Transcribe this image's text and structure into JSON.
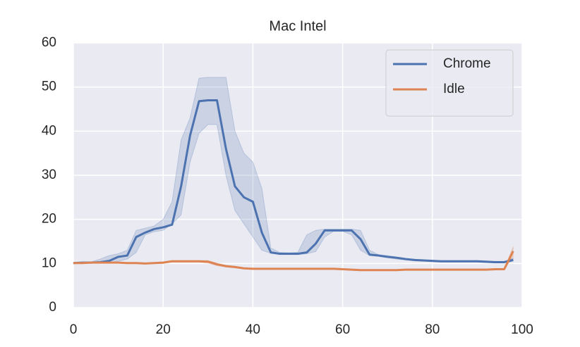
{
  "chart_data": {
    "type": "line",
    "title": "Mac Intel",
    "x": [
      0,
      2,
      4,
      6,
      8,
      10,
      12,
      14,
      16,
      18,
      20,
      22,
      24,
      26,
      28,
      30,
      32,
      34,
      36,
      38,
      40,
      42,
      44,
      46,
      48,
      50,
      52,
      54,
      56,
      58,
      60,
      62,
      64,
      66,
      68,
      70,
      72,
      74,
      76,
      78,
      80,
      82,
      84,
      86,
      88,
      90,
      92,
      94,
      96,
      98
    ],
    "series": [
      {
        "name": "Chrome",
        "color": "#4c72b0",
        "values": [
          10.1,
          10.2,
          10.2,
          10.3,
          10.6,
          11.5,
          11.8,
          16.0,
          17.0,
          17.8,
          18.2,
          18.8,
          27.5,
          39.0,
          46.8,
          47.0,
          47.0,
          36.0,
          27.5,
          25.0,
          24.0,
          17.0,
          12.5,
          12.2,
          12.2,
          12.2,
          12.5,
          14.5,
          17.5,
          17.5,
          17.5,
          17.5,
          15.5,
          12.0,
          11.8,
          11.5,
          11.3,
          11.0,
          10.8,
          10.7,
          10.6,
          10.5,
          10.5,
          10.5,
          10.5,
          10.5,
          10.4,
          10.3,
          10.3,
          10.8
        ],
        "band": {
          "lower": [
            10.0,
            10.0,
            10.1,
            10.1,
            10.2,
            10.5,
            11.0,
            12.5,
            16.5,
            17.2,
            17.5,
            19.0,
            21.0,
            33.0,
            39.5,
            41.5,
            41.5,
            30.0,
            22.0,
            19.0,
            16.0,
            13.0,
            12.3,
            12.0,
            12.0,
            12.0,
            12.2,
            12.7,
            16.0,
            17.3,
            17.3,
            16.5,
            13.0,
            11.8,
            11.6,
            11.3,
            11.0,
            10.8,
            10.6,
            10.5,
            10.4,
            10.3,
            10.3,
            10.3,
            10.3,
            10.3,
            10.2,
            10.1,
            10.1,
            10.5
          ],
          "upper": [
            10.2,
            10.3,
            10.4,
            11.0,
            11.8,
            12.2,
            13.0,
            17.5,
            18.0,
            18.5,
            20.0,
            24.0,
            38.0,
            43.0,
            52.0,
            52.2,
            52.2,
            52.2,
            40.0,
            35.0,
            33.0,
            27.0,
            13.5,
            12.5,
            12.4,
            12.5,
            16.5,
            17.5,
            17.8,
            17.8,
            17.8,
            17.8,
            17.5,
            13.0,
            12.0,
            11.8,
            11.5,
            11.2,
            11.0,
            10.8,
            10.7,
            10.7,
            10.7,
            10.7,
            10.7,
            10.7,
            10.6,
            10.5,
            10.5,
            11.2
          ]
        }
      },
      {
        "name": "Idle",
        "color": "#dd8452",
        "values": [
          10.1,
          10.1,
          10.2,
          10.2,
          10.2,
          10.2,
          10.1,
          10.1,
          10.0,
          10.1,
          10.2,
          10.5,
          10.5,
          10.5,
          10.5,
          10.4,
          9.8,
          9.4,
          9.2,
          8.9,
          8.8,
          8.8,
          8.8,
          8.8,
          8.8,
          8.8,
          8.8,
          8.8,
          8.8,
          8.8,
          8.7,
          8.6,
          8.5,
          8.5,
          8.5,
          8.5,
          8.5,
          8.6,
          8.6,
          8.6,
          8.6,
          8.6,
          8.6,
          8.6,
          8.6,
          8.6,
          8.6,
          8.7,
          8.7,
          12.8
        ],
        "band": {
          "lower": [
            10.0,
            10.0,
            10.1,
            10.1,
            10.1,
            10.1,
            10.0,
            10.0,
            9.9,
            10.0,
            10.0,
            10.3,
            10.3,
            10.3,
            10.3,
            10.1,
            9.5,
            9.2,
            9.0,
            8.8,
            8.7,
            8.7,
            8.7,
            8.7,
            8.7,
            8.7,
            8.7,
            8.7,
            8.7,
            8.7,
            8.6,
            8.5,
            8.4,
            8.4,
            8.4,
            8.4,
            8.4,
            8.5,
            8.5,
            8.5,
            8.5,
            8.5,
            8.5,
            8.5,
            8.5,
            8.5,
            8.5,
            8.6,
            8.6,
            11.5
          ],
          "upper": [
            10.2,
            10.2,
            10.3,
            10.3,
            10.3,
            10.3,
            10.2,
            10.2,
            10.1,
            10.2,
            10.4,
            10.7,
            10.7,
            10.7,
            10.7,
            10.7,
            10.1,
            9.6,
            9.4,
            9.0,
            8.9,
            8.9,
            8.9,
            8.9,
            8.9,
            8.9,
            8.9,
            8.9,
            8.9,
            8.9,
            8.8,
            8.7,
            8.6,
            8.6,
            8.6,
            8.6,
            8.6,
            8.7,
            8.7,
            8.7,
            8.7,
            8.7,
            8.7,
            8.7,
            8.7,
            8.7,
            8.7,
            8.8,
            8.8,
            13.8
          ]
        }
      }
    ],
    "xlim": [
      0,
      100
    ],
    "ylim": [
      0,
      60
    ],
    "xticks": [
      0,
      20,
      40,
      60,
      80,
      100
    ],
    "yticks": [
      0,
      10,
      20,
      30,
      40,
      50,
      60
    ],
    "grid": true,
    "legend": "upper right"
  }
}
